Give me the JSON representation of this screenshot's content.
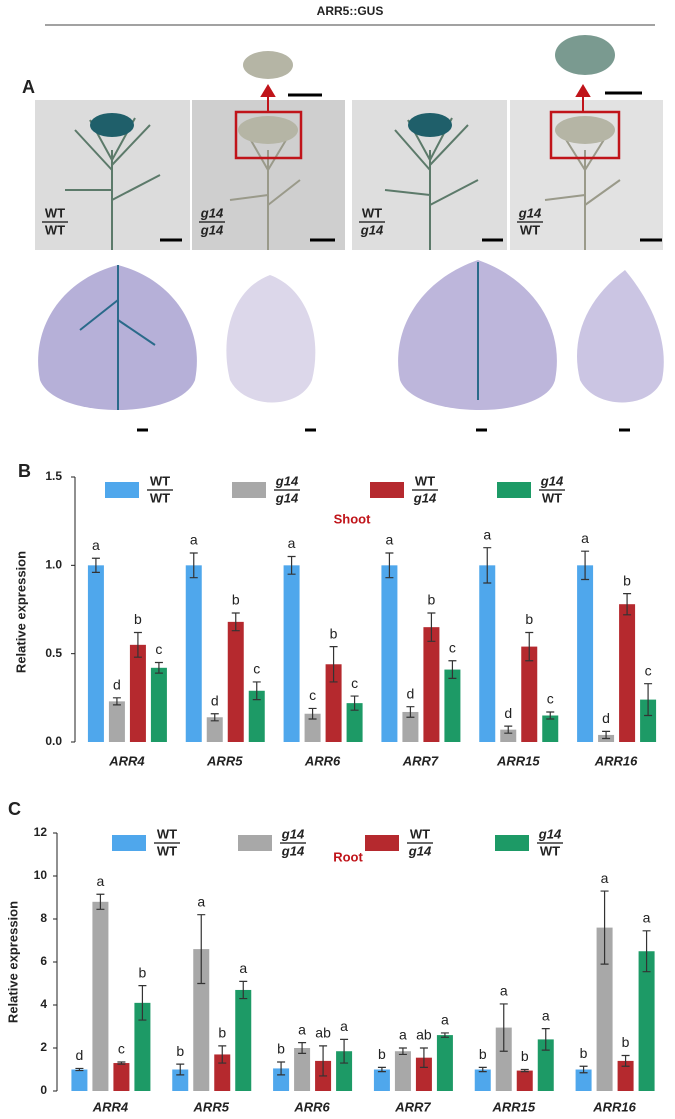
{
  "panel_a": {
    "heading": "ARR5::GUS",
    "panel_label": "A",
    "genotypes": [
      {
        "top": "WT",
        "bottom": "WT",
        "italic": false
      },
      {
        "top": "g14",
        "bottom": "g14",
        "italic": true
      },
      {
        "top": "WT",
        "bottom": "g14",
        "italic": [
          false,
          true
        ]
      },
      {
        "top": "g14",
        "bottom": "WT",
        "italic": [
          true,
          false
        ]
      }
    ]
  },
  "chart_data": [
    {
      "type": "bar",
      "panel_label": "B",
      "subtitle": "Shoot",
      "y_label": "Relative expression",
      "categories": [
        "ARR4",
        "ARR5",
        "ARR6",
        "ARR7",
        "ARR15",
        "ARR16"
      ],
      "ylim": [
        0,
        1.5
      ],
      "yticks": [
        {
          "value": 0,
          "label": "0.0"
        },
        0.5,
        {
          "value": 1,
          "label": "1.0"
        },
        1.5
      ],
      "series": [
        {
          "name": [
            "WT",
            "WT"
          ],
          "name_italic": [
            false,
            false
          ],
          "color": "#4fa7ec",
          "values": [
            1,
            1,
            1,
            1,
            1,
            1
          ],
          "errors": [
            0.04,
            0.07,
            0.05,
            0.07,
            0.1,
            0.08
          ],
          "letters": [
            "a",
            "a",
            "a",
            "a",
            "a",
            "a"
          ]
        },
        {
          "name": [
            "g14",
            "g14"
          ],
          "name_italic": [
            true,
            true
          ],
          "color": "#a8a8a8",
          "values": [
            0.23,
            0.14,
            0.16,
            0.17,
            0.07,
            0.04
          ],
          "errors": [
            0.02,
            0.02,
            0.03,
            0.03,
            0.02,
            0.02
          ],
          "letters": [
            "d",
            "d",
            "c",
            "d",
            "d",
            "d"
          ]
        },
        {
          "name": [
            "WT",
            "g14"
          ],
          "name_italic": [
            false,
            true
          ],
          "color": "#b5292e",
          "values": [
            0.55,
            0.68,
            0.44,
            0.65,
            0.54,
            0.78
          ],
          "errors": [
            0.07,
            0.05,
            0.1,
            0.08,
            0.08,
            0.06
          ],
          "letters": [
            "b",
            "b",
            "b",
            "b",
            "b",
            "b"
          ]
        },
        {
          "name": [
            "g14",
            "WT"
          ],
          "name_italic": [
            true,
            false
          ],
          "color": "#1d9a66",
          "values": [
            0.42,
            0.29,
            0.22,
            0.41,
            0.15,
            0.24
          ],
          "errors": [
            0.03,
            0.05,
            0.04,
            0.05,
            0.02,
            0.09
          ],
          "letters": [
            "c",
            "c",
            "c",
            "c",
            "c",
            "c"
          ]
        }
      ]
    },
    {
      "type": "bar",
      "panel_label": "C",
      "subtitle": "Root",
      "y_label": "Relative expression",
      "categories": [
        "ARR4",
        "ARR5",
        "ARR6",
        "ARR7",
        "ARR15",
        "ARR16"
      ],
      "ylim": [
        0,
        12
      ],
      "yticks": [
        0,
        2,
        4,
        6,
        8,
        10,
        12
      ],
      "series": [
        {
          "name": [
            "WT",
            "WT"
          ],
          "name_italic": [
            false,
            false
          ],
          "color": "#4fa7ec",
          "values": [
            1,
            1,
            1.05,
            1,
            1,
            1
          ],
          "errors": [
            0.05,
            0.25,
            0.3,
            0.1,
            0.1,
            0.15
          ],
          "letters": [
            "d",
            "b",
            "b",
            "b",
            "b",
            "b"
          ]
        },
        {
          "name": [
            "g14",
            "g14"
          ],
          "name_italic": [
            true,
            true
          ],
          "color": "#a8a8a8",
          "values": [
            8.8,
            6.6,
            2,
            1.85,
            2.95,
            7.6
          ],
          "errors": [
            0.35,
            1.6,
            0.25,
            0.15,
            1.1,
            1.7
          ],
          "letters": [
            "a",
            "a",
            "a",
            "a",
            "a",
            "a"
          ]
        },
        {
          "name": [
            "WT",
            "g14"
          ],
          "name_italic": [
            false,
            true
          ],
          "color": "#b5292e",
          "values": [
            1.3,
            1.7,
            1.4,
            1.55,
            0.95,
            1.4
          ],
          "errors": [
            0.05,
            0.4,
            0.7,
            0.45,
            0.05,
            0.25
          ],
          "letters": [
            "c",
            "b",
            "ab",
            "ab",
            "b",
            "b"
          ]
        },
        {
          "name": [
            "g14",
            "WT"
          ],
          "name_italic": [
            true,
            false
          ],
          "color": "#1d9a66",
          "values": [
            4.1,
            4.7,
            1.85,
            2.6,
            2.4,
            6.5
          ],
          "errors": [
            0.8,
            0.4,
            0.55,
            0.1,
            0.5,
            0.95
          ],
          "letters": [
            "b",
            "a",
            "a",
            "a",
            "a",
            "a"
          ]
        }
      ]
    }
  ]
}
